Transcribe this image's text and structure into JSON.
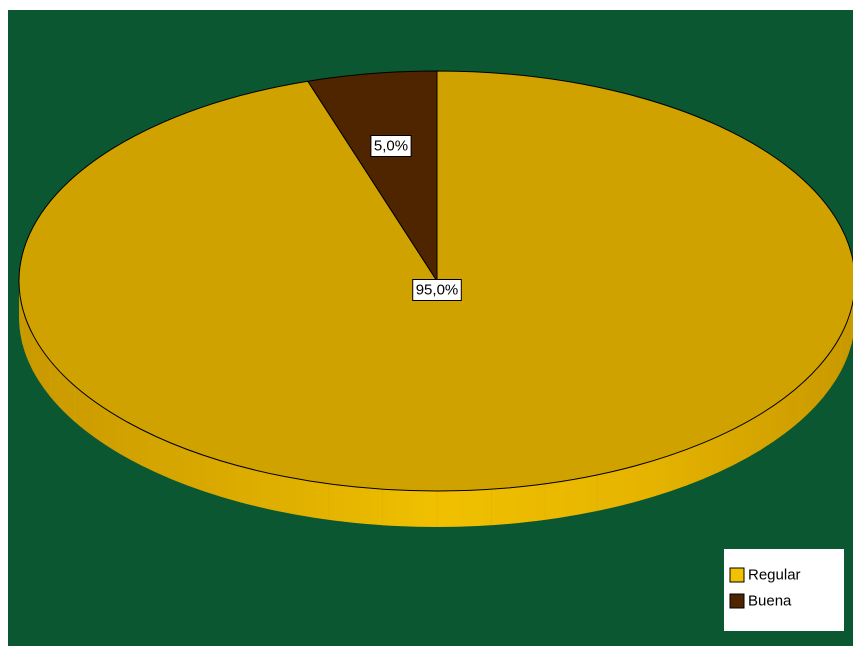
{
  "chart_data": {
    "type": "pie",
    "style": "3d",
    "categories": [
      "Regular",
      "Buena"
    ],
    "values": [
      95.0,
      5.0
    ],
    "labels": [
      "95,0%",
      "5,0%"
    ],
    "colors": {
      "Regular": "#D0A200",
      "Buena": "#4F2500"
    },
    "legend": {
      "placement": "bottom-right",
      "entries": [
        "Regular",
        "Buena"
      ]
    }
  },
  "colors": {
    "background": "#0B5731",
    "outer_background": "#FFFFFF",
    "regular_face": "#D0A200",
    "regular_side": "#E8B800",
    "buena_face": "#4F2500",
    "outline": "#000000",
    "legend_regular_swatch": "#F2C200",
    "legend_buena_swatch": "#4F2500"
  }
}
